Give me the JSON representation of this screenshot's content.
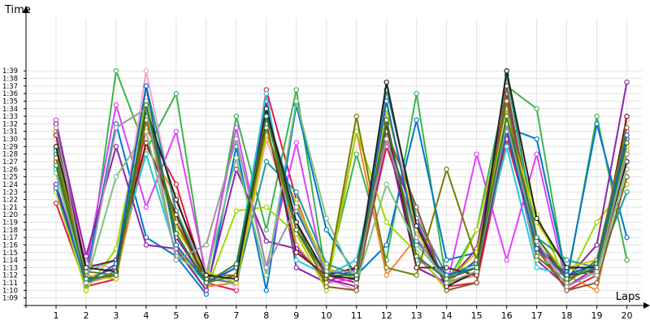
{
  "chart_data": {
    "type": "line",
    "title": "",
    "xlabel": "Laps",
    "ylabel": "Time",
    "x": [
      1,
      2,
      3,
      4,
      5,
      6,
      7,
      8,
      9,
      10,
      11,
      12,
      13,
      14,
      15,
      16,
      17,
      18,
      19,
      20
    ],
    "xlim": [
      0.0,
      20.5
    ],
    "ylim": [
      "1:08",
      "1:46"
    ],
    "y_ticks": [
      "1:09",
      "1:10",
      "1:11",
      "1:12",
      "1:13",
      "1:14",
      "1:15",
      "1:16",
      "1:17",
      "1:18",
      "1:19",
      "1:20",
      "1:21",
      "1:22",
      "1:23",
      "1:24",
      "1:25",
      "1:26",
      "1:27",
      "1:28",
      "1:29",
      "1:30",
      "1:31",
      "1:32",
      "1:33",
      "1:34",
      "1:35",
      "1:36",
      "1:37",
      "1:38",
      "1:39"
    ],
    "grid": true,
    "legend": "none",
    "colors": [
      "#e6194b",
      "#3cb44b",
      "#0077cc",
      "#f58231",
      "#911eb4",
      "#22c8d8",
      "#e040fb",
      "#9ed800",
      "#f4a3c8",
      "#1a9e8f",
      "#8e24aa",
      "#8b5a2b",
      "#c9c900",
      "#6b1e1e",
      "#7ec27e",
      "#7a7a00",
      "#1565c0",
      "#222222",
      "#999999",
      "#2e7d32",
      "#1e90ff",
      "#d4b000",
      "#2020c0",
      "#40e0d0",
      "#ff5500",
      "#ffaa00",
      "#00aaff",
      "#aa00ff",
      "#ff1493",
      "#228b22",
      "#808000",
      "#c71585",
      "#008b8b",
      "#b22222",
      "#4b0082",
      "#ff69b4",
      "#00ced1",
      "#9acd32",
      "#dc143c",
      "#6495ed"
    ],
    "series": [
      {
        "values": [
          81.5,
          70.5,
          71.5,
          91.5,
          84.0,
          71.0,
          70.0,
          96.5,
          82.0,
          72.0,
          71.0,
          89.0,
          78.0,
          70.5,
          71.0,
          90.0,
          76.0,
          70.0,
          72.0,
          88.0
        ]
      },
      {
        "values": [
          92.0,
          70.0,
          99.0,
          88.5,
          96.0,
          71.0,
          93.0,
          78.0,
          96.5,
          71.5,
          88.0,
          74.0,
          96.0,
          71.0,
          78.0,
          97.0,
          94.0,
          71.0,
          93.0,
          74.0
        ]
      },
      {
        "values": [
          88.0,
          72.0,
          92.0,
          77.0,
          74.5,
          69.5,
          89.0,
          70.0,
          94.5,
          78.0,
          72.0,
          76.0,
          92.5,
          74.0,
          75.0,
          91.5,
          90.0,
          71.5,
          92.0,
          77.0
        ]
      },
      {
        "values": [
          91.0,
          71.0,
          72.0,
          89.0,
          82.5,
          70.5,
          71.0,
          94.0,
          76.0,
          71.0,
          91.0,
          72.0,
          77.0,
          71.0,
          72.0,
          99.0,
          77.0,
          72.0,
          70.0,
          88.5
        ]
      },
      {
        "values": [
          84.0,
          71.5,
          73.0,
          93.0,
          77.0,
          71.0,
          72.0,
          95.0,
          73.0,
          71.0,
          73.0,
          90.5,
          73.0,
          71.0,
          74.0,
          92.0,
          74.0,
          70.5,
          73.0,
          90.0
        ]
      },
      {
        "values": [
          86.0,
          72.5,
          74.0,
          88.0,
          75.0,
          71.0,
          73.0,
          96.0,
          74.0,
          72.0,
          74.0,
          92.0,
          74.0,
          72.0,
          73.0,
          89.0,
          73.0,
          72.0,
          73.0,
          89.0
        ]
      },
      {
        "values": [
          92.5,
          73.0,
          94.5,
          81.0,
          91.0,
          72.0,
          91.5,
          73.0,
          89.5,
          71.0,
          71.5,
          92.5,
          74.5,
          70.5,
          88.0,
          74.0,
          88.0,
          70.5,
          72.5,
          91.0
        ]
      },
      {
        "values": [
          83.0,
          70.0,
          75.5,
          95.5,
          76.0,
          70.0,
          80.5,
          81.0,
          77.5,
          70.0,
          91.0,
          79.0,
          75.0,
          70.0,
          78.0,
          94.0,
          80.0,
          71.0,
          79.0,
          84.0
        ]
      },
      {
        "values": [
          90.0,
          73.5,
          73.0,
          99.0,
          80.0,
          72.5,
          70.5,
          90.0,
          78.5,
          71.5,
          70.0,
          93.5,
          80.0,
          72.0,
          73.0,
          95.5,
          75.0,
          72.0,
          73.5,
          92.5
        ]
      },
      {
        "values": [
          88.5,
          71.0,
          72.5,
          97.0,
          80.5,
          71.5,
          71.0,
          87.0,
          83.0,
          73.5,
          72.0,
          96.5,
          79.5,
          72.0,
          73.5,
          98.5,
          77.0,
          74.0,
          73.0,
          83.0
        ]
      },
      {
        "values": [
          92.0,
          74.5,
          89.0,
          76.0,
          75.5,
          70.0,
          86.0,
          76.5,
          75.5,
          71.5,
          70.5,
          90.0,
          79.0,
          71.0,
          75.5,
          96.0,
          76.0,
          71.5,
          76.0,
          97.5
        ]
      },
      {
        "values": [
          87.0,
          71.5,
          72.0,
          93.0,
          79.0,
          72.0,
          72.0,
          93.0,
          79.0,
          70.5,
          70.0,
          91.0,
          81.0,
          70.0,
          71.0,
          97.0,
          75.5,
          70.0,
          71.0,
          85.0
        ]
      },
      {
        "values": [
          89.0,
          72.0,
          71.5,
          95.0,
          78.0,
          72.5,
          71.0,
          90.5,
          81.5,
          73.0,
          71.5,
          94.0,
          78.0,
          71.0,
          75.0,
          93.0,
          79.0,
          73.0,
          74.0,
          89.0
        ]
      },
      {
        "values": [
          90.5,
          73.0,
          74.0,
          89.5,
          80.0,
          71.0,
          73.0,
          92.0,
          75.0,
          72.0,
          73.0,
          92.0,
          73.0,
          73.0,
          72.0,
          91.0,
          76.0,
          72.0,
          72.5,
          93.0
        ]
      },
      {
        "values": [
          85.5,
          71.0,
          85.0,
          91.0,
          74.5,
          72.0,
          87.5,
          72.0,
          95.0,
          79.5,
          71.0,
          84.0,
          76.0,
          71.5,
          73.0,
          93.0,
          74.0,
          73.0,
          72.0,
          86.0
        ]
      },
      {
        "values": [
          87.5,
          72.5,
          72.0,
          92.5,
          79.0,
          71.0,
          72.0,
          91.5,
          78.0,
          71.0,
          93.0,
          73.0,
          72.0,
          86.0,
          74.0,
          95.0,
          74.5,
          71.0,
          74.0,
          91.5
        ]
      },
      {
        "values": [
          83.5,
          71.0,
          73.5,
          97.0,
          76.0,
          71.0,
          73.0,
          93.5,
          80.5,
          72.5,
          72.0,
          95.0,
          76.5,
          72.0,
          73.0,
          91.0,
          75.5,
          72.0,
          73.5,
          90.5
        ]
      },
      {
        "values": [
          89.0,
          73.0,
          72.5,
          94.0,
          82.0,
          72.0,
          71.5,
          94.0,
          79.0,
          72.0,
          71.5,
          97.5,
          78.5,
          70.5,
          72.5,
          99.0,
          79.5,
          73.0,
          73.0,
          87.0
        ]
      },
      {
        "values": [
          91.5,
          71.0,
          91.5,
          94.0,
          74.0,
          76.0,
          90.0,
          73.0,
          81.0,
          72.5,
          72.5,
          90.0,
          77.0,
          71.0,
          72.5,
          92.0,
          76.5,
          70.5,
          72.5,
          88.0
        ]
      },
      {
        "values": [
          86.5,
          71.5,
          72.0,
          94.5,
          77.5,
          71.0,
          73.5,
          93.0,
          78.0,
          72.0,
          72.0,
          92.5,
          74.5,
          71.5,
          73.0,
          93.0,
          77.0,
          71.5,
          73.0,
          89.5
        ]
      }
    ]
  }
}
